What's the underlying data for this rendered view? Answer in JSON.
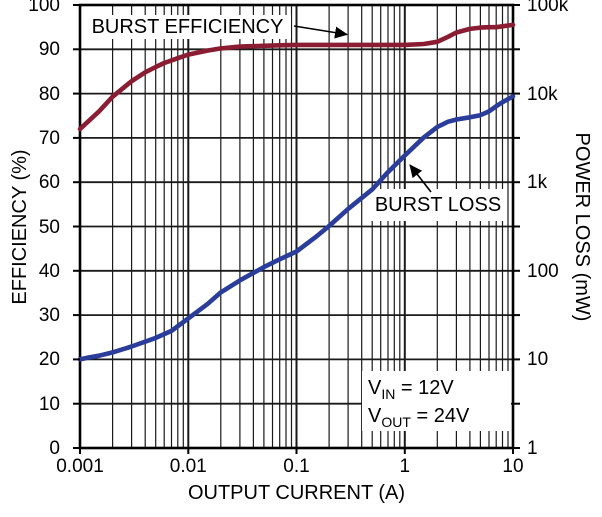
{
  "chart_data": {
    "type": "line",
    "title": "",
    "xlabel": "OUTPUT CURRENT (A)",
    "x_scale": "log",
    "x_range": [
      0.001,
      10
    ],
    "x_tick_labels": [
      "0.001",
      "0.01",
      "0.1",
      "1",
      "10"
    ],
    "y_left_axis": {
      "label": "EFFICIENCY (%)",
      "scale": "linear",
      "range": [
        0,
        100
      ],
      "tick_labels_top_to_bottom": [
        "100",
        "90",
        "80",
        "70",
        "60",
        "50",
        "40",
        "30",
        "20",
        "10",
        "0"
      ]
    },
    "y_right_axis": {
      "label": "POWER LOSS (mW)",
      "scale": "log",
      "range": [
        1,
        100000
      ],
      "tick_labels_top_to_bottom": [
        "100k",
        "10k",
        "1k",
        "100",
        "10",
        "1"
      ]
    },
    "grid": {
      "horizontal_major": true,
      "vertical_log_major": true,
      "vertical_log_minor": true
    },
    "legend_position": "inline-callouts",
    "series": [
      {
        "name": "BURST EFFICIENCY",
        "axis": "left",
        "color": "#8B1D33",
        "points": [
          [
            0.001,
            72
          ],
          [
            0.0012,
            73.8
          ],
          [
            0.0015,
            76
          ],
          [
            0.002,
            79.3
          ],
          [
            0.003,
            82.8
          ],
          [
            0.004,
            84.8
          ],
          [
            0.005,
            86
          ],
          [
            0.006,
            86.9
          ],
          [
            0.007,
            87.5
          ],
          [
            0.008,
            88
          ],
          [
            0.01,
            88.8
          ],
          [
            0.015,
            89.7
          ],
          [
            0.02,
            90.2
          ],
          [
            0.03,
            90.6
          ],
          [
            0.05,
            90.8
          ],
          [
            0.07,
            90.9
          ],
          [
            0.1,
            91
          ],
          [
            0.15,
            91
          ],
          [
            0.2,
            91
          ],
          [
            0.3,
            91
          ],
          [
            0.5,
            91
          ],
          [
            0.7,
            91
          ],
          [
            1,
            91
          ],
          [
            1.5,
            91.2
          ],
          [
            2,
            91.7
          ],
          [
            2.5,
            92.8
          ],
          [
            3,
            93.8
          ],
          [
            4,
            94.6
          ],
          [
            5,
            94.9
          ],
          [
            6,
            95
          ],
          [
            7,
            95
          ],
          [
            8,
            95.2
          ],
          [
            10,
            95.5
          ]
        ]
      },
      {
        "name": "BURST LOSS",
        "axis": "right",
        "color": "#2B3D9B",
        "points": [
          [
            0.001,
            10
          ],
          [
            0.0012,
            10.5
          ],
          [
            0.0015,
            11
          ],
          [
            0.002,
            12
          ],
          [
            0.003,
            14
          ],
          [
            0.005,
            17.5
          ],
          [
            0.007,
            21
          ],
          [
            0.01,
            29
          ],
          [
            0.015,
            42
          ],
          [
            0.02,
            57
          ],
          [
            0.03,
            78
          ],
          [
            0.05,
            110
          ],
          [
            0.07,
            135
          ],
          [
            0.1,
            165
          ],
          [
            0.15,
            240
          ],
          [
            0.2,
            320
          ],
          [
            0.3,
            500
          ],
          [
            0.5,
            830
          ],
          [
            0.7,
            1300
          ],
          [
            1,
            2000
          ],
          [
            1.5,
            3200
          ],
          [
            2,
            4200
          ],
          [
            2.5,
            4800
          ],
          [
            3,
            5100
          ],
          [
            4,
            5400
          ],
          [
            5,
            5700
          ],
          [
            6,
            6300
          ],
          [
            7,
            7200
          ],
          [
            8,
            8000
          ],
          [
            10,
            9300
          ]
        ]
      }
    ],
    "annotation": {
      "line1": {
        "pre": "V",
        "sub": "IN",
        "post": " = 12V"
      },
      "line2": {
        "pre": "V",
        "sub": "OUT",
        "post": " = 24V"
      }
    }
  },
  "labels": {
    "efficiency_callout": "BURST EFFICIENCY",
    "loss_callout": "BURST LOSS",
    "x_axis": "OUTPUT CURRENT (A)",
    "left_axis": "EFFICIENCY (%)",
    "right_axis": "POWER LOSS (mW)"
  },
  "colors": {
    "efficiency_curve": "#8B1D33",
    "loss_curve": "#2B3D9B",
    "grid": "#1A1A1A",
    "background": "#FFFFFF",
    "text": "#000000"
  }
}
